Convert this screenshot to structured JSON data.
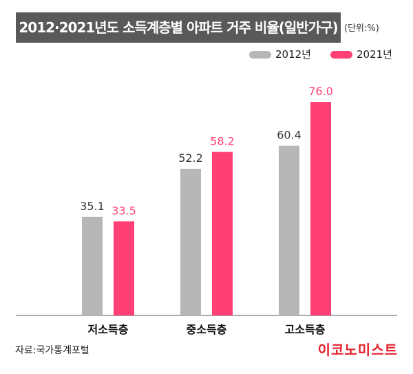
{
  "title": "2012·2021년도 소득계층별 아파트 거주 비율(일반가구)",
  "unit": "(단위:%)",
  "source": "자료:국가통계포털",
  "brand": "이코노미스트",
  "colors": {
    "s2012": "#b7b7b7",
    "s2021": "#ff4075",
    "title_bg": "#595959",
    "brand": "#e5202e"
  },
  "chart_data": {
    "type": "bar",
    "categories": [
      "저소득층",
      "중소득층",
      "고소득층"
    ],
    "series": [
      {
        "name": "2012년",
        "values": [
          35.1,
          52.2,
          60.4
        ]
      },
      {
        "name": "2021년",
        "values": [
          33.5,
          58.2,
          76.0
        ]
      }
    ],
    "ylim": [
      0,
      76.0
    ],
    "grid": false,
    "legend": "top-right"
  }
}
